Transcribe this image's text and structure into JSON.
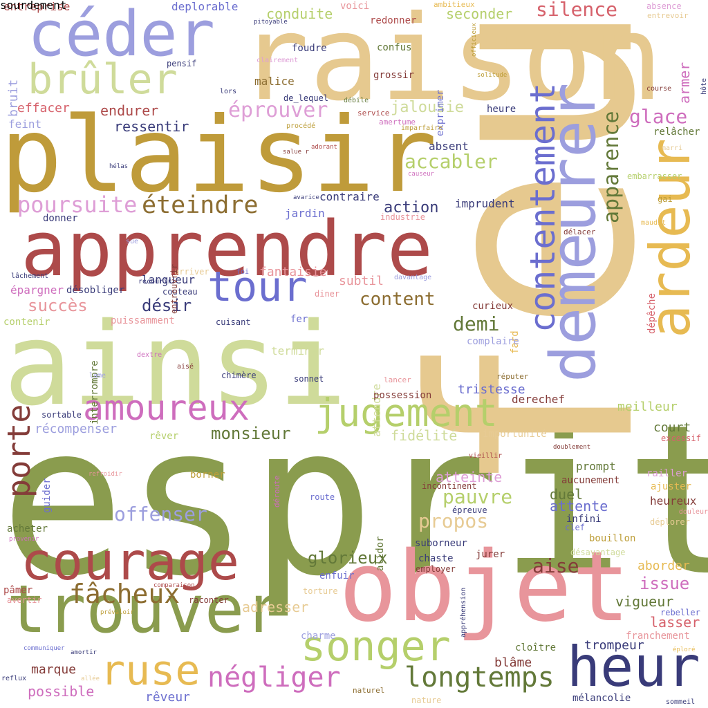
{
  "words": [
    {
      "text": "esprit",
      "color": "#8a9c4e"
    },
    {
      "text": "feu",
      "color": "#e6c98f"
    },
    {
      "text": "raison",
      "color": "#e6c98f"
    },
    {
      "text": "plaisir",
      "color": "#bf9b3a"
    },
    {
      "text": "ainsi",
      "color": "#cfdb9a"
    },
    {
      "text": "objet",
      "color": "#e8959b"
    },
    {
      "text": "apprendre",
      "color": "#ad4a4a"
    },
    {
      "text": "demeurer",
      "color": "#9c9ede"
    },
    {
      "text": "ardeur",
      "color": "#e7ba52"
    },
    {
      "text": "céder",
      "color": "#9c9ede"
    },
    {
      "text": "trouver",
      "color": "#8a9c4e"
    },
    {
      "text": "courage",
      "color": "#ad4a4a"
    },
    {
      "text": "heur",
      "color": "#393b79"
    },
    {
      "text": "brûler",
      "color": "#cfdb9a"
    },
    {
      "text": "songer",
      "color": "#b5cf6b"
    },
    {
      "text": "jugement",
      "color": "#b5cf6b"
    },
    {
      "text": "tour",
      "color": "#6b6ecf"
    },
    {
      "text": "amoureux",
      "color": "#ce6dbd"
    },
    {
      "text": "contentement",
      "color": "#6b6ecf"
    },
    {
      "text": "ruse",
      "color": "#e7ba52"
    },
    {
      "text": "négliger",
      "color": "#ce6dbd"
    },
    {
      "text": "longtemps",
      "color": "#637939"
    },
    {
      "text": "porte",
      "color": "#843c39"
    },
    {
      "text": "fâcheux",
      "color": "#8c6d31"
    },
    {
      "text": "apparence",
      "color": "#637939"
    },
    {
      "text": "éteindre",
      "color": "#8c6d31"
    },
    {
      "text": "poursuite",
      "color": "#de9ed6"
    },
    {
      "text": "silence",
      "color": "#d6616b"
    },
    {
      "text": "éprouver",
      "color": "#de9ed6"
    },
    {
      "text": "accabler",
      "color": "#b5cf6b"
    },
    {
      "text": "offenser",
      "color": "#9c9ede"
    },
    {
      "text": "pauvre",
      "color": "#b5cf6b"
    },
    {
      "text": "glorieux",
      "color": "#637939"
    },
    {
      "text": "propos",
      "color": "#e7cb94"
    },
    {
      "text": "demi",
      "color": "#637939"
    },
    {
      "text": "aise",
      "color": "#843c39"
    },
    {
      "text": "content",
      "color": "#8c6d31"
    },
    {
      "text": "glace",
      "color": "#ce6dbd"
    },
    {
      "text": "monsieur",
      "color": "#637939"
    },
    {
      "text": "succès",
      "color": "#e8959b"
    },
    {
      "text": "désir",
      "color": "#393b79"
    },
    {
      "text": "action",
      "color": "#393b79"
    },
    {
      "text": "jalousie",
      "color": "#cfdb9a"
    },
    {
      "text": "conduite",
      "color": "#b5cf6b"
    },
    {
      "text": "seconder",
      "color": "#b5cf6b"
    },
    {
      "text": "endurer",
      "color": "#ad4a4a"
    },
    {
      "text": "ressentir",
      "color": "#393b79"
    },
    {
      "text": "effacer",
      "color": "#d6616b"
    },
    {
      "text": "atteinte",
      "color": "#de9ed6"
    },
    {
      "text": "attente",
      "color": "#6b6ecf"
    },
    {
      "text": "duel",
      "color": "#637939"
    },
    {
      "text": "issue",
      "color": "#ce6dbd"
    },
    {
      "text": "vigueur",
      "color": "#637939"
    },
    {
      "text": "lasser",
      "color": "#d6616b"
    },
    {
      "text": "adresser",
      "color": "#e7cb94"
    },
    {
      "text": "marque",
      "color": "#843c39"
    },
    {
      "text": "possible",
      "color": "#ce6dbd"
    },
    {
      "text": "rêveur",
      "color": "#6b6ecf"
    },
    {
      "text": "blâme",
      "color": "#843c39"
    },
    {
      "text": "trompeur",
      "color": "#393b79"
    },
    {
      "text": "fidélité",
      "color": "#cfdb9a"
    },
    {
      "text": "court",
      "color": "#637939"
    },
    {
      "text": "meilleur",
      "color": "#b5cf6b"
    },
    {
      "text": "récompenser",
      "color": "#9c9ede"
    },
    {
      "text": "tristesse",
      "color": "#6b6ecf"
    },
    {
      "text": "derechef",
      "color": "#843c39"
    },
    {
      "text": "fantaisie",
      "color": "#e8959b"
    },
    {
      "text": "langueur",
      "color": "#393b79"
    },
    {
      "text": "subtil",
      "color": "#e8959b"
    },
    {
      "text": "imprudent",
      "color": "#393b79"
    },
    {
      "text": "absent",
      "color": "#393b79"
    },
    {
      "text": "contraire",
      "color": "#393b79"
    },
    {
      "text": "jardin",
      "color": "#6b6ecf"
    },
    {
      "text": "malice",
      "color": "#8c6d31"
    },
    {
      "text": "deplorable",
      "color": "#6b6ecf"
    },
    {
      "text": "entreprise",
      "color": "#ad4a4a"
    },
    {
      "text": "voici",
      "color": "#e8959b"
    },
    {
      "text": "redonner",
      "color": "#ad4a4a"
    },
    {
      "text": "foudre",
      "color": "#393b79"
    },
    {
      "text": "confus",
      "color": "#637939"
    },
    {
      "text": "grossir",
      "color": "#843c39"
    },
    {
      "text": "exprimer",
      "color": "#6b6ecf"
    },
    {
      "text": "armer",
      "color": "#ce6dbd"
    },
    {
      "text": "bruit",
      "color": "#9c9ede"
    },
    {
      "text": "feint",
      "color": "#9c9ede"
    },
    {
      "text": "relâcher",
      "color": "#637939"
    },
    {
      "text": "embarrasser",
      "color": "#b5cf6b"
    },
    {
      "text": "gai",
      "color": "#bd9e39"
    },
    {
      "text": "maudit",
      "color": "#e7ba52"
    },
    {
      "text": "délacer",
      "color": "#843c39"
    },
    {
      "text": "curieux",
      "color": "#843c39"
    },
    {
      "text": "fard",
      "color": "#e7ba52"
    },
    {
      "text": "complaire",
      "color": "#9c9ede"
    },
    {
      "text": "terminer",
      "color": "#cfdb9a"
    },
    {
      "text": "attendre",
      "color": "#cfdb9a"
    },
    {
      "text": "chimère",
      "color": "#393b79"
    },
    {
      "text": "sonnet",
      "color": "#393b79"
    },
    {
      "text": "possession",
      "color": "#843c39"
    },
    {
      "text": "importunité",
      "color": "#e7cb94"
    },
    {
      "text": "excessif",
      "color": "#d6616b"
    },
    {
      "text": "prompt",
      "color": "#637939"
    },
    {
      "text": "aucunement",
      "color": "#843c39"
    },
    {
      "text": "railler",
      "color": "#de9ed6"
    },
    {
      "text": "ajuster",
      "color": "#e7ba52"
    },
    {
      "text": "heureux",
      "color": "#843c39"
    },
    {
      "text": "infini",
      "color": "#393b79"
    },
    {
      "text": "clef",
      "color": "#6b6ecf"
    },
    {
      "text": "bouillon",
      "color": "#bd9e39"
    },
    {
      "text": "déplorer",
      "color": "#e7cb94"
    },
    {
      "text": "aborder",
      "color": "#e7ba52"
    },
    {
      "text": "suborneur",
      "color": "#393b79"
    },
    {
      "text": "chaste",
      "color": "#393b79"
    },
    {
      "text": "enfuir",
      "color": "#6b6ecf"
    },
    {
      "text": "épreuve",
      "color": "#393b79"
    },
    {
      "text": "incontinent",
      "color": "#843c39"
    },
    {
      "text": "jurer",
      "color": "#843c39"
    },
    {
      "text": "employer",
      "color": "#843c39"
    },
    {
      "text": "alidor",
      "color": "#637939"
    },
    {
      "text": "route",
      "color": "#6b6ecf"
    },
    {
      "text": "borner",
      "color": "#bd9e39"
    },
    {
      "text": "rêver",
      "color": "#b5cf6b"
    },
    {
      "text": "sortable",
      "color": "#393b79"
    },
    {
      "text": "guider",
      "color": "#6b6ecf"
    },
    {
      "text": "acheter",
      "color": "#637939"
    },
    {
      "text": "pâmer",
      "color": "#ad4a4a"
    },
    {
      "text": "avertir",
      "color": "#e8959b"
    },
    {
      "text": "raconter",
      "color": "#843c39"
    },
    {
      "text": "charme",
      "color": "#9c9ede"
    },
    {
      "text": "cloître",
      "color": "#637939"
    },
    {
      "text": "rebeller",
      "color": "#6b6ecf"
    },
    {
      "text": "franchement",
      "color": "#e8959b"
    },
    {
      "text": "mélancolie",
      "color": "#393b79"
    },
    {
      "text": "naturel",
      "color": "#8c6d31"
    },
    {
      "text": "nature",
      "color": "#e7cb94"
    },
    {
      "text": "sommeil",
      "color": "#393b79"
    },
    {
      "text": "torture",
      "color": "#e7cb94"
    },
    {
      "text": "désavantage",
      "color": "#cfdb9a"
    },
    {
      "text": "douleur",
      "color": "#e8959b"
    },
    {
      "text": "vieillir",
      "color": "#ad4a4a"
    },
    {
      "text": "doublement",
      "color": "#843c39"
    },
    {
      "text": "réputer",
      "color": "#8c6d31"
    },
    {
      "text": "lancer",
      "color": "#e8959b"
    },
    {
      "text": "interrompre",
      "color": "#637939"
    },
    {
      "text": "lame",
      "color": "#9c9ede"
    },
    {
      "text": "aisé",
      "color": "#843c39"
    },
    {
      "text": "dextre",
      "color": "#ce6dbd"
    },
    {
      "text": "contenir",
      "color": "#b5cf6b"
    },
    {
      "text": "puissamment",
      "color": "#e8959b"
    },
    {
      "text": "cuisant",
      "color": "#393b79"
    },
    {
      "text": "fer",
      "color": "#6b6ecf"
    },
    {
      "text": "diner",
      "color": "#e8959b"
    },
    {
      "text": "désobliger",
      "color": "#393b79"
    },
    {
      "text": "épargner",
      "color": "#ce6dbd"
    },
    {
      "text": "lâchement",
      "color": "#393b79"
    },
    {
      "text": "recourir",
      "color": "#393b79"
    },
    {
      "text": "couteau",
      "color": "#393b79"
    },
    {
      "text": "arriver",
      "color": "#e7cb94"
    },
    {
      "text": "foi",
      "color": "#6b6ecf"
    },
    {
      "text": "davantage",
      "color": "#9c9ede"
    },
    {
      "text": "entrouvrir",
      "color": "#843c39"
    },
    {
      "text": "sue",
      "color": "#9c9ede"
    },
    {
      "text": "donner",
      "color": "#393b79"
    },
    {
      "text": "industrie",
      "color": "#e8959b"
    },
    {
      "text": "avarice",
      "color": "#393b79"
    },
    {
      "text": "hélas",
      "color": "#393b79"
    },
    {
      "text": "salue r",
      "color": "#843c39"
    },
    {
      "text": "adorant",
      "color": "#ad4a4a"
    },
    {
      "text": "causeur",
      "color": "#ce6dbd"
    },
    {
      "text": "procédé",
      "color": "#bd9e39"
    },
    {
      "text": "amertume",
      "color": "#ce6dbd"
    },
    {
      "text": "imparfaire",
      "color": "#bd9e39"
    },
    {
      "text": "service",
      "color": "#ad4a4a"
    },
    {
      "text": "heure",
      "color": "#393b79"
    },
    {
      "text": "débile",
      "color": "#637939"
    },
    {
      "text": "de_lequel",
      "color": "#393b79"
    },
    {
      "text": "lors",
      "color": "#393b79"
    },
    {
      "text": "pensif",
      "color": "#393b79"
    },
    {
      "text": "clairement",
      "color": "#de9ed6"
    },
    {
      "text": "pitoyable",
      "color": "#393b79"
    },
    {
      "text": "ambitieux",
      "color": "#e7ba52"
    },
    {
      "text": "officieux",
      "color": "#bd9e39"
    },
    {
      "text": "solitude",
      "color": "#bd9e39"
    },
    {
      "text": "absence",
      "color": "#de9ed6"
    },
    {
      "text": "entrevoir",
      "color": "#e7cb94"
    },
    {
      "text": "course",
      "color": "#843c39"
    },
    {
      "text": "hôte",
      "color": "#393b79"
    },
    {
      "text": "marri",
      "color": "#e7cb94"
    },
    {
      "text": "dépêche",
      "color": "#d6616b"
    },
    {
      "text": "refroidir",
      "color": "#e8959b"
    },
    {
      "text": "déroute",
      "color": "#ce6dbd"
    },
    {
      "text": "provenir",
      "color": "#ce6dbd"
    },
    {
      "text": "comparaison",
      "color": "#ad4a4a"
    },
    {
      "text": "prévaloir",
      "color": "#bd9e39"
    },
    {
      "text": "appréhension",
      "color": "#393b79"
    },
    {
      "text": "communiquer",
      "color": "#6b6ecf"
    },
    {
      "text": "amortir",
      "color": "#393b79"
    },
    {
      "text": "éploré",
      "color": "#e7ba52"
    },
    {
      "text": "allée",
      "color": "#e7cb94"
    },
    {
      "text": "reflux",
      "color": "#393b79"
    },
    {
      "text": "sourdement",
      "color": "#de9ed6"
    }
  ]
}
